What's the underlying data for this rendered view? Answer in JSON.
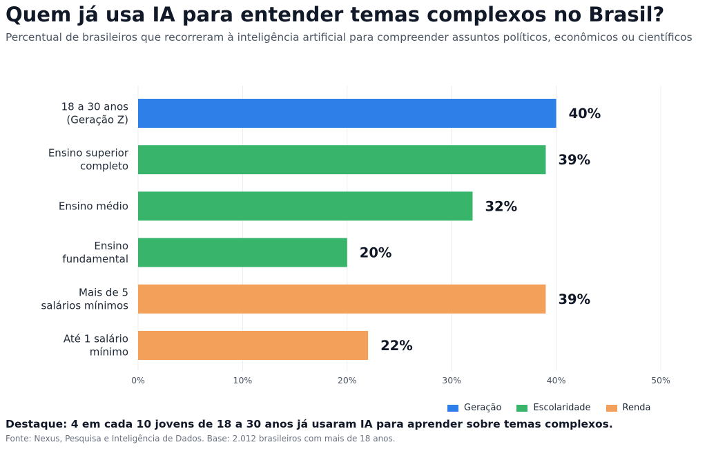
{
  "title": "Quem já usa IA para entender temas complexos no Brasil?",
  "subtitle": "Percentual de brasileiros que recorreram à inteligência artificial para compreender assuntos políticos, econômicos ou científicos",
  "highlight": "Destaque: 4 em cada 10 jovens de 18 a 30 anos já usaram IA para aprender sobre temas complexos.",
  "source": "Fonte: Nexus, Pesquisa e Inteligência de Dados. Base: 2.012 brasileiros com mais de 18 anos.",
  "colors": {
    "Geração": "#2f7fe9",
    "Escolaridade": "#38b56a",
    "Renda": "#f2a05a"
  },
  "legend": [
    {
      "label": "Geração",
      "color": "#2f7fe9"
    },
    {
      "label": "Escolaridade",
      "color": "#38b56a"
    },
    {
      "label": "Renda",
      "color": "#f2a05a"
    }
  ],
  "chart_data": {
    "type": "bar",
    "orientation": "horizontal",
    "categories": [
      [
        "18 a 30 anos",
        "(Geração Z)"
      ],
      [
        "Ensino superior",
        "completo"
      ],
      [
        "Ensino médio"
      ],
      [
        "Ensino",
        "fundamental"
      ],
      [
        "Mais de 5",
        "salários mínimos"
      ],
      [
        "Até 1 salário",
        "mínimo"
      ]
    ],
    "values": [
      40,
      39,
      32,
      20,
      39,
      22
    ],
    "value_labels": [
      "40%",
      "39%",
      "32%",
      "20%",
      "39%",
      "22%"
    ],
    "groups": [
      "Geração",
      "Escolaridade",
      "Escolaridade",
      "Escolaridade",
      "Renda",
      "Renda"
    ],
    "xlim": [
      0,
      50
    ],
    "xticks": [
      0,
      10,
      20,
      30,
      40,
      50
    ],
    "xtick_labels": [
      "0%",
      "10%",
      "20%",
      "30%",
      "40%",
      "50%"
    ],
    "grid": true,
    "legend_position": "bottom-right"
  }
}
